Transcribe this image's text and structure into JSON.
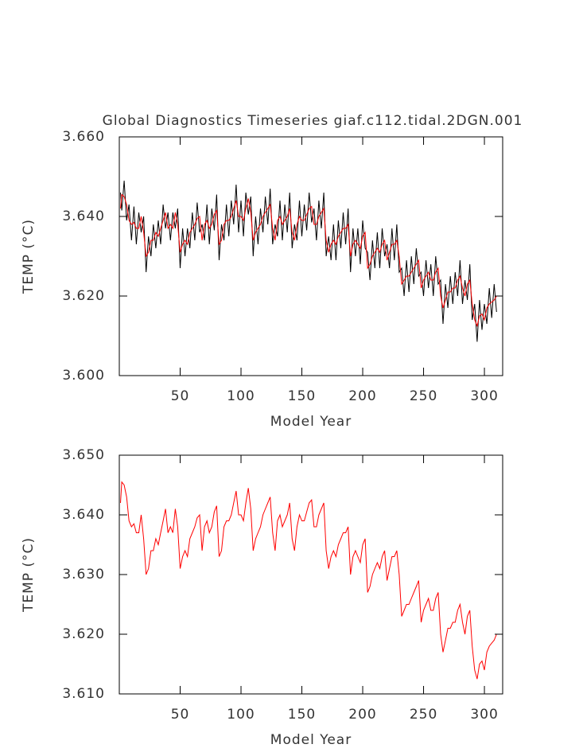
{
  "chart_data": [
    {
      "type": "line",
      "title": "Global Diagnostics Timeseries giaf.c112.tidal.2DGN.001",
      "xlabel": "Model Year",
      "ylabel": "TEMP (°C)",
      "x": [
        1,
        2,
        4,
        6,
        8,
        10,
        12,
        14,
        16,
        18,
        20,
        22,
        24,
        26,
        28,
        30,
        32,
        34,
        36,
        38,
        40,
        42,
        44,
        46,
        48,
        50,
        52,
        54,
        56,
        58,
        60,
        62,
        64,
        66,
        68,
        70,
        72,
        74,
        76,
        78,
        80,
        82,
        84,
        86,
        88,
        90,
        92,
        94,
        96,
        98,
        100,
        102,
        104,
        106,
        108,
        110,
        112,
        114,
        116,
        118,
        120,
        122,
        124,
        126,
        128,
        130,
        132,
        134,
        136,
        138,
        140,
        142,
        144,
        146,
        148,
        150,
        152,
        154,
        156,
        158,
        160,
        162,
        164,
        166,
        168,
        170,
        172,
        174,
        176,
        178,
        180,
        182,
        184,
        186,
        188,
        190,
        192,
        194,
        196,
        198,
        200,
        202,
        204,
        206,
        208,
        210,
        212,
        214,
        216,
        218,
        220,
        222,
        224,
        226,
        228,
        230,
        232,
        234,
        236,
        238,
        240,
        242,
        244,
        246,
        248,
        250,
        252,
        254,
        256,
        258,
        260,
        262,
        264,
        266,
        268,
        270,
        272,
        274,
        276,
        278,
        280,
        282,
        284,
        286,
        288,
        290,
        292,
        294,
        296,
        298,
        300,
        302,
        304,
        306,
        308,
        310
      ],
      "series": [
        {
          "color": "#000000",
          "values": [
            3.646,
            3.6415,
            3.649,
            3.639,
            3.643,
            3.634,
            3.6425,
            3.633,
            3.641,
            3.636,
            3.64,
            3.626,
            3.635,
            3.63,
            3.638,
            3.632,
            3.639,
            3.633,
            3.643,
            3.637,
            3.641,
            3.634,
            3.641,
            3.637,
            3.642,
            3.627,
            3.637,
            3.63,
            3.637,
            3.632,
            3.641,
            3.634,
            3.6435,
            3.636,
            3.638,
            3.634,
            3.643,
            3.633,
            3.642,
            3.6365,
            3.6455,
            3.629,
            3.638,
            3.634,
            3.643,
            3.635,
            3.644,
            3.638,
            3.648,
            3.636,
            3.644,
            3.635,
            3.646,
            3.6405,
            3.645,
            3.63,
            3.64,
            3.633,
            3.642,
            3.636,
            3.645,
            3.638,
            3.647,
            3.633,
            3.638,
            3.635,
            3.644,
            3.634,
            3.643,
            3.636,
            3.646,
            3.632,
            3.638,
            3.634,
            3.644,
            3.635,
            3.643,
            3.6365,
            3.646,
            3.6385,
            3.642,
            3.634,
            3.644,
            3.637,
            3.646,
            3.63,
            3.635,
            3.629,
            3.638,
            3.629,
            3.639,
            3.632,
            3.641,
            3.633,
            3.642,
            3.626,
            3.637,
            3.63,
            3.637,
            3.628,
            3.639,
            3.632,
            3.631,
            3.624,
            3.634,
            3.627,
            3.636,
            3.627,
            3.637,
            3.63,
            3.633,
            3.627,
            3.637,
            3.629,
            3.638,
            3.626,
            3.627,
            3.62,
            3.629,
            3.621,
            3.63,
            3.623,
            3.632,
            3.625,
            3.626,
            3.62,
            3.629,
            3.622,
            3.628,
            3.62,
            3.63,
            3.623,
            3.624,
            3.613,
            3.623,
            3.617,
            3.625,
            3.618,
            3.626,
            3.62,
            3.629,
            3.618,
            3.624,
            3.619,
            3.628,
            3.614,
            3.618,
            3.6085,
            3.619,
            3.6115,
            3.618,
            3.613,
            3.622,
            3.6145,
            3.623,
            3.616
          ]
        },
        {
          "color": "#ff0000",
          "values": [
            3.642,
            3.6455,
            3.645,
            3.643,
            3.639,
            3.638,
            3.6385,
            3.637,
            3.637,
            3.64,
            3.636,
            3.63,
            3.631,
            3.634,
            3.634,
            3.636,
            3.635,
            3.637,
            3.639,
            3.641,
            3.637,
            3.638,
            3.637,
            3.641,
            3.638,
            3.631,
            3.633,
            3.634,
            3.633,
            3.636,
            3.637,
            3.638,
            3.6395,
            3.64,
            3.634,
            3.638,
            3.639,
            3.637,
            3.638,
            3.6405,
            3.6415,
            3.633,
            3.634,
            3.638,
            3.639,
            3.639,
            3.64,
            3.642,
            3.644,
            3.64,
            3.64,
            3.639,
            3.642,
            3.6445,
            3.641,
            3.634,
            3.636,
            3.637,
            3.638,
            3.64,
            3.641,
            3.642,
            3.643,
            3.637,
            3.634,
            3.639,
            3.64,
            3.638,
            3.639,
            3.64,
            3.642,
            3.636,
            3.634,
            3.638,
            3.64,
            3.639,
            3.639,
            3.6405,
            3.642,
            3.6425,
            3.638,
            3.638,
            3.64,
            3.641,
            3.642,
            3.634,
            3.631,
            3.633,
            3.634,
            3.633,
            3.635,
            3.636,
            3.637,
            3.637,
            3.638,
            3.63,
            3.633,
            3.634,
            3.633,
            3.632,
            3.635,
            3.636,
            3.627,
            3.628,
            3.63,
            3.631,
            3.632,
            3.631,
            3.633,
            3.634,
            3.629,
            3.631,
            3.633,
            3.633,
            3.634,
            3.63,
            3.623,
            3.624,
            3.625,
            3.625,
            3.626,
            3.627,
            3.628,
            3.629,
            3.622,
            3.624,
            3.625,
            3.626,
            3.624,
            3.624,
            3.626,
            3.627,
            3.62,
            3.617,
            3.619,
            3.621,
            3.621,
            3.622,
            3.622,
            3.624,
            3.625,
            3.622,
            3.62,
            3.623,
            3.624,
            3.618,
            3.614,
            3.6125,
            3.615,
            3.6155,
            3.614,
            3.617,
            3.618,
            3.6185,
            3.619,
            3.62
          ]
        }
      ],
      "xlim": [
        0,
        315
      ],
      "ylim": [
        3.6,
        3.66
      ],
      "xticks": [
        50,
        100,
        150,
        200,
        250,
        300
      ],
      "yticks": [
        {
          "value": 3.6,
          "label": "3.600"
        },
        {
          "value": 3.62,
          "label": "3.620"
        },
        {
          "value": 3.64,
          "label": "3.640"
        },
        {
          "value": 3.66,
          "label": "3.660"
        }
      ]
    },
    {
      "type": "line",
      "xlabel": "Model Year",
      "ylabel": "TEMP (°C)",
      "x": [
        1,
        2,
        4,
        6,
        8,
        10,
        12,
        14,
        16,
        18,
        20,
        22,
        24,
        26,
        28,
        30,
        32,
        34,
        36,
        38,
        40,
        42,
        44,
        46,
        48,
        50,
        52,
        54,
        56,
        58,
        60,
        62,
        64,
        66,
        68,
        70,
        72,
        74,
        76,
        78,
        80,
        82,
        84,
        86,
        88,
        90,
        92,
        94,
        96,
        98,
        100,
        102,
        104,
        106,
        108,
        110,
        112,
        114,
        116,
        118,
        120,
        122,
        124,
        126,
        128,
        130,
        132,
        134,
        136,
        138,
        140,
        142,
        144,
        146,
        148,
        150,
        152,
        154,
        156,
        158,
        160,
        162,
        164,
        166,
        168,
        170,
        172,
        174,
        176,
        178,
        180,
        182,
        184,
        186,
        188,
        190,
        192,
        194,
        196,
        198,
        200,
        202,
        204,
        206,
        208,
        210,
        212,
        214,
        216,
        218,
        220,
        222,
        224,
        226,
        228,
        230,
        232,
        234,
        236,
        238,
        240,
        242,
        244,
        246,
        248,
        250,
        252,
        254,
        256,
        258,
        260,
        262,
        264,
        266,
        268,
        270,
        272,
        274,
        276,
        278,
        280,
        282,
        284,
        286,
        288,
        290,
        292,
        294,
        296,
        298,
        300,
        302,
        304,
        306,
        308,
        310
      ],
      "series": [
        {
          "color": "#ff0000",
          "values": [
            3.642,
            3.6455,
            3.645,
            3.643,
            3.639,
            3.638,
            3.6385,
            3.637,
            3.637,
            3.64,
            3.636,
            3.63,
            3.631,
            3.634,
            3.634,
            3.636,
            3.635,
            3.637,
            3.639,
            3.641,
            3.637,
            3.638,
            3.637,
            3.641,
            3.638,
            3.631,
            3.633,
            3.634,
            3.633,
            3.636,
            3.637,
            3.638,
            3.6395,
            3.64,
            3.634,
            3.638,
            3.639,
            3.637,
            3.638,
            3.6405,
            3.6415,
            3.633,
            3.634,
            3.638,
            3.639,
            3.639,
            3.64,
            3.642,
            3.644,
            3.64,
            3.64,
            3.639,
            3.642,
            3.6445,
            3.641,
            3.634,
            3.636,
            3.637,
            3.638,
            3.64,
            3.641,
            3.642,
            3.643,
            3.637,
            3.634,
            3.639,
            3.64,
            3.638,
            3.639,
            3.64,
            3.642,
            3.636,
            3.634,
            3.638,
            3.64,
            3.639,
            3.639,
            3.6405,
            3.642,
            3.6425,
            3.638,
            3.638,
            3.64,
            3.641,
            3.642,
            3.634,
            3.631,
            3.633,
            3.634,
            3.633,
            3.635,
            3.636,
            3.637,
            3.637,
            3.638,
            3.63,
            3.633,
            3.634,
            3.633,
            3.632,
            3.635,
            3.636,
            3.627,
            3.628,
            3.63,
            3.631,
            3.632,
            3.631,
            3.633,
            3.634,
            3.629,
            3.631,
            3.633,
            3.633,
            3.634,
            3.63,
            3.623,
            3.624,
            3.625,
            3.625,
            3.626,
            3.627,
            3.628,
            3.629,
            3.622,
            3.624,
            3.625,
            3.626,
            3.624,
            3.624,
            3.626,
            3.627,
            3.62,
            3.617,
            3.619,
            3.621,
            3.621,
            3.622,
            3.622,
            3.624,
            3.625,
            3.622,
            3.62,
            3.623,
            3.624,
            3.618,
            3.614,
            3.6125,
            3.615,
            3.6155,
            3.614,
            3.617,
            3.618,
            3.6185,
            3.619,
            3.62
          ]
        }
      ],
      "xlim": [
        0,
        315
      ],
      "ylim": [
        3.61,
        3.65
      ],
      "xticks": [
        50,
        100,
        150,
        200,
        250,
        300
      ],
      "yticks": [
        {
          "value": 3.61,
          "label": "3.610"
        },
        {
          "value": 3.62,
          "label": "3.620"
        },
        {
          "value": 3.63,
          "label": "3.630"
        },
        {
          "value": 3.64,
          "label": "3.640"
        },
        {
          "value": 3.65,
          "label": "3.650"
        }
      ]
    }
  ]
}
